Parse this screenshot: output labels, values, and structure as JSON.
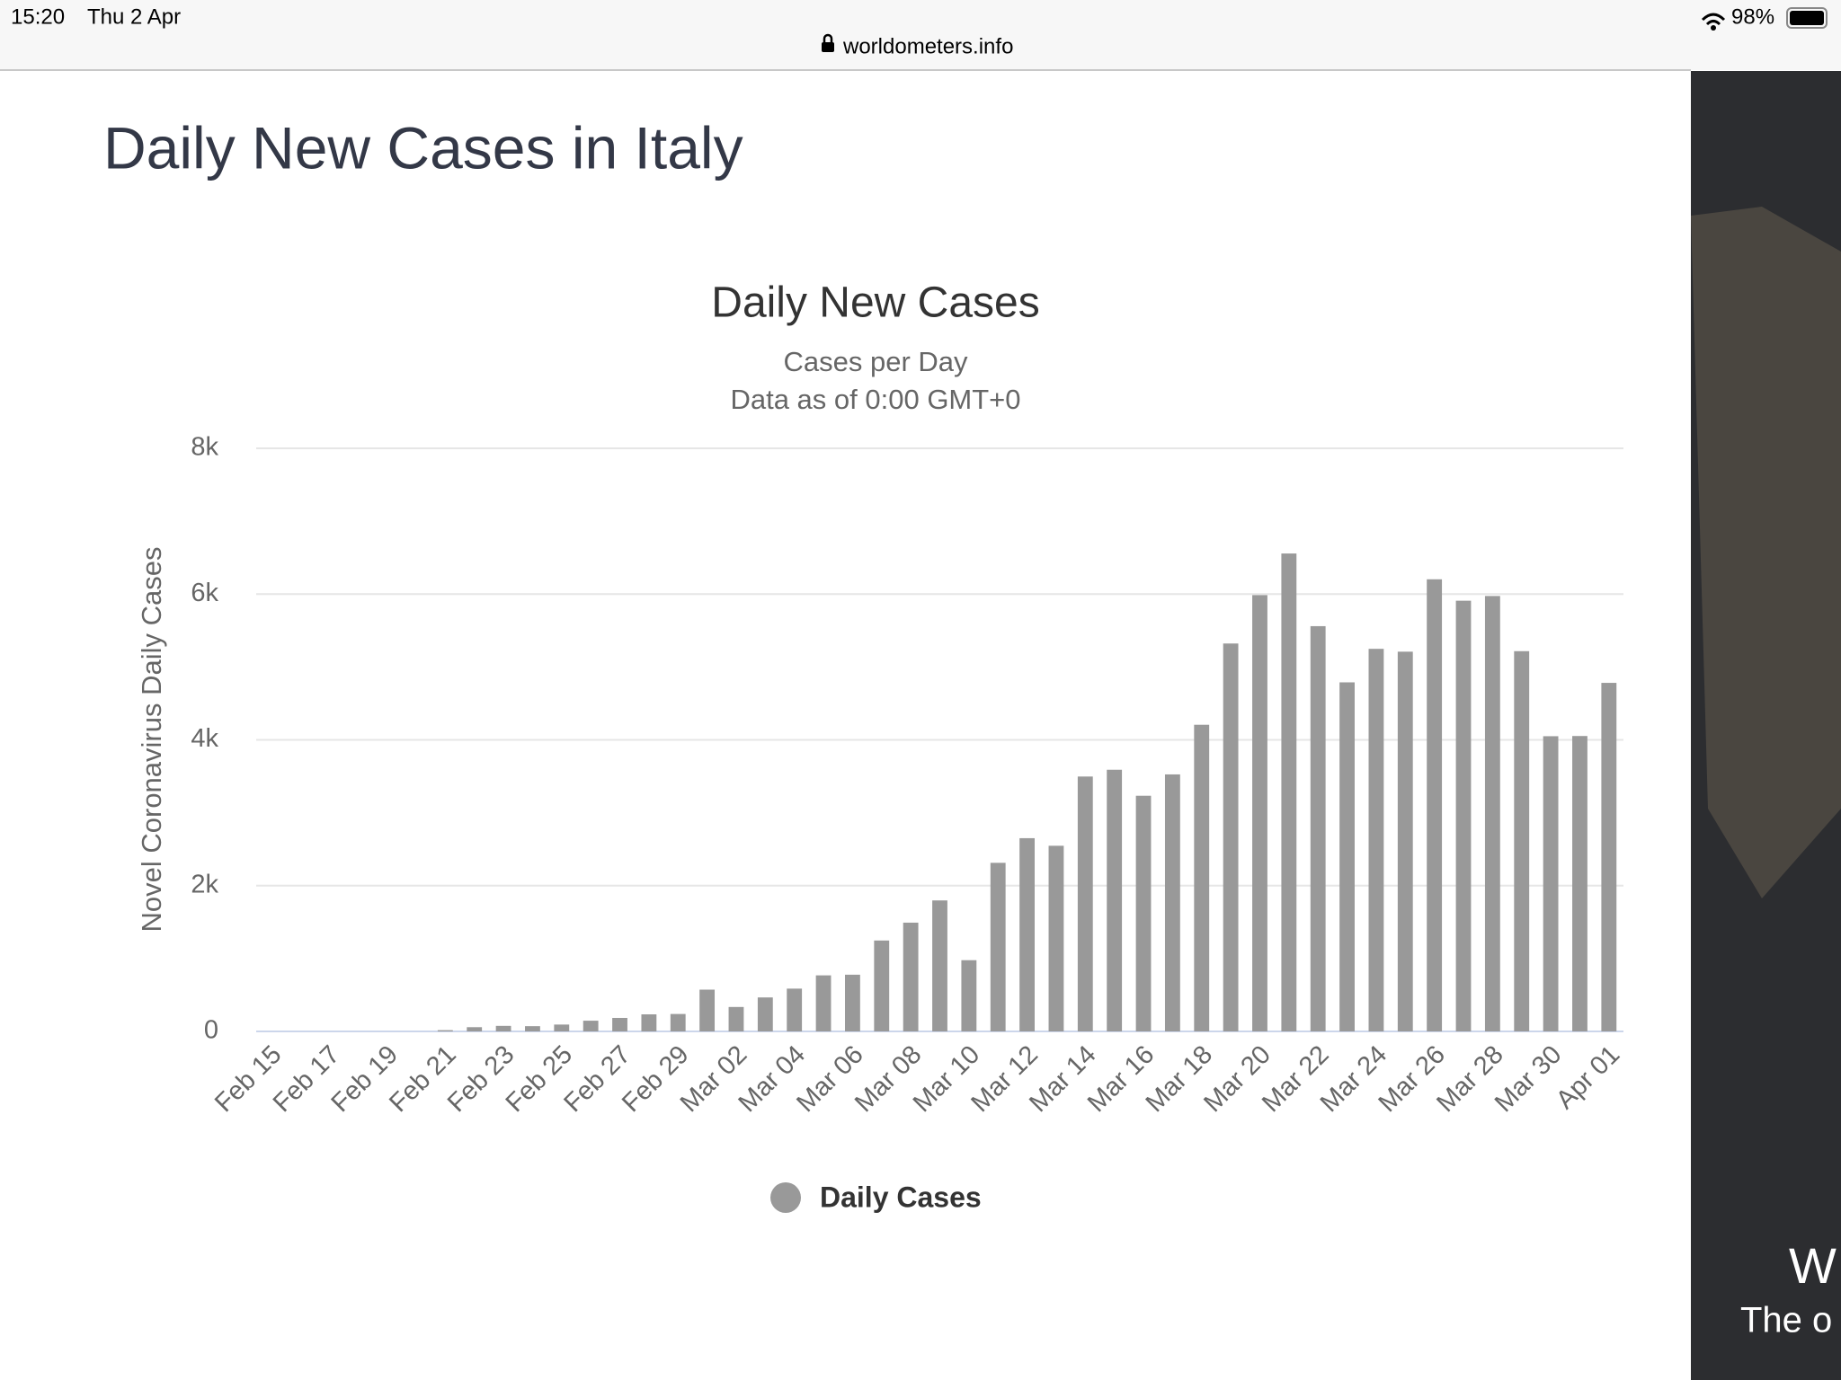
{
  "status_bar": {
    "time": "15:20",
    "date": "Thu 2 Apr",
    "battery": "98%"
  },
  "browser": {
    "url": "worldometers.info"
  },
  "page": {
    "heading": "Daily New Cases in Italy"
  },
  "ad": {
    "lines": [
      "W",
      "The o"
    ]
  },
  "chart_data": {
    "type": "bar",
    "title": "Daily New Cases",
    "subtitle": [
      "Cases per Day",
      "Data as of 0:00 GMT+0"
    ],
    "y_label": "Novel Coronavirus Daily Cases",
    "categories": [
      "Feb 15",
      null,
      "Feb 17",
      null,
      "Feb 19",
      null,
      "Feb 21",
      null,
      "Feb 23",
      null,
      "Feb 25",
      null,
      "Feb 27",
      null,
      "Feb 29",
      null,
      "Mar 02",
      null,
      "Mar 04",
      null,
      "Mar 06",
      null,
      "Mar 08",
      null,
      "Mar 10",
      null,
      "Mar 12",
      null,
      "Mar 14",
      null,
      "Mar 16",
      null,
      "Mar 18",
      null,
      "Mar 20",
      null,
      "Mar 22",
      null,
      "Mar 24",
      null,
      "Mar 26",
      null,
      "Mar 28",
      null,
      "Mar 30",
      null,
      "Apr 01"
    ],
    "series": [
      {
        "name": "Daily Cases",
        "color": "#999999",
        "values": [
          0,
          0,
          0,
          0,
          0,
          0,
          17,
          58,
          76,
          72,
          94,
          147,
          185,
          234,
          239,
          573,
          335,
          466,
          587,
          769,
          778,
          1247,
          1492,
          1797,
          977,
          2313,
          2651,
          2547,
          3497,
          3590,
          3233,
          3526,
          4207,
          5322,
          5986,
          6557,
          5560,
          4789,
          5249,
          5210,
          6203,
          5909,
          5974,
          5217,
          4050,
          4053,
          4782
        ]
      }
    ],
    "ylim": [
      0,
      8000
    ],
    "yticks": [
      0,
      {
        "value": 2000,
        "label": "2k"
      },
      {
        "value": 4000,
        "label": "4k"
      },
      {
        "value": 6000,
        "label": "6k"
      },
      {
        "value": 8000,
        "label": "8k"
      }
    ],
    "grid": true
  }
}
